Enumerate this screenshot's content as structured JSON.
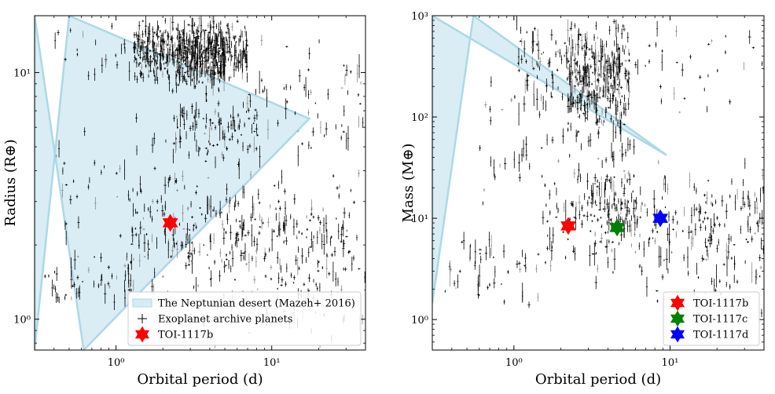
{
  "chart_data": [
    {
      "type": "scatter",
      "xlabel": "Orbital period (d)",
      "ylabel": "Radius (R⊕)",
      "xscale": "log",
      "yscale": "log",
      "xlim": [
        0.3,
        40
      ],
      "ylim": [
        0.75,
        17
      ],
      "x_ticks": [
        {
          "value": 1,
          "label": "10⁰"
        },
        {
          "value": 10,
          "label": "10¹"
        }
      ],
      "y_ticks": [
        {
          "value": 1,
          "label": "10⁰"
        },
        {
          "value": 10,
          "label": "10¹"
        }
      ],
      "desert_polygon": {
        "name": "The Neptunian desert (Mazeh+ 2016)",
        "color": "#add8e6",
        "period": [
          0.3,
          0.3,
          0.62,
          17.4,
          0.5
        ],
        "radius": [
          0.75,
          17,
          0.75,
          6.5,
          17
        ]
      },
      "archive_planets": {
        "name": "Exoplanet archive planets",
        "clusters": [
          {
            "xr": [
              1.3,
              7
            ],
            "yr": [
              9,
              17
            ],
            "n": 440
          },
          {
            "xr": [
              2.5,
              5
            ],
            "yr": [
              8,
              16
            ],
            "n": 160
          },
          {
            "xr": [
              1.2,
              40
            ],
            "yr": [
              1.2,
              4.2
            ],
            "n": 330
          },
          {
            "xr": [
              0.35,
              1.3
            ],
            "yr": [
              1.05,
              1.9
            ],
            "n": 55
          },
          {
            "xr": [
              2.3,
              8
            ],
            "yr": [
              4,
              9
            ],
            "n": 110
          },
          {
            "xr": [
              0.4,
              4
            ],
            "yr": [
              1.8,
              7
            ],
            "n": 45
          },
          {
            "xr": [
              8,
              40
            ],
            "yr": [
              4,
              14
            ],
            "n": 60
          },
          {
            "xr": [
              0.4,
              5
            ],
            "yr": [
              8,
              17
            ],
            "n": 45
          },
          {
            "xr": [
              3,
              40
            ],
            "yr": [
              0.76,
              1.5
            ],
            "n": 40
          }
        ]
      },
      "highlight": [
        {
          "name": "TOI-1117b",
          "period": 2.23,
          "value": 2.46,
          "color": "#ff0000"
        }
      ],
      "legend": {
        "placement": "lower right",
        "entries": [
          {
            "label": "The Neptunian desert (Mazeh+ 2016)",
            "kind": "patch",
            "color": "#add8e6"
          },
          {
            "label": "Exoplanet archive planets",
            "kind": "errorbar",
            "color": "#000000"
          },
          {
            "label": "TOI-1117b",
            "kind": "star",
            "color": "#ff0000"
          }
        ]
      }
    },
    {
      "type": "scatter",
      "xlabel": "Orbital period (d)",
      "ylabel": "Mass (M⊕)",
      "xscale": "log",
      "yscale": "log",
      "xlim": [
        0.3,
        40
      ],
      "ylim": [
        0.5,
        1000
      ],
      "x_ticks": [
        {
          "value": 1,
          "label": "10⁰"
        },
        {
          "value": 10,
          "label": "10¹"
        }
      ],
      "y_ticks": [
        {
          "value": 1,
          "label": "10⁰"
        },
        {
          "value": 10,
          "label": "10¹"
        },
        {
          "value": 100,
          "label": "10²"
        },
        {
          "value": 1000,
          "label": "10³"
        }
      ],
      "desert_polygon": {
        "name": "The Neptunian desert (Mazeh+ 2016)",
        "color": "#add8e6",
        "period": [
          0.3,
          0.3,
          9.5,
          0.55,
          0.3
        ],
        "mass": [
          1.45,
          1000,
          42,
          1000,
          1.45
        ]
      },
      "archive_planets": {
        "name": "Exoplanet archive planets",
        "clusters": [
          {
            "xr": [
              2.2,
              5.5
            ],
            "yr": [
              60,
              1000
            ],
            "n": 330
          },
          {
            "xr": [
              1.0,
              2.5
            ],
            "yr": [
              100,
              1000
            ],
            "n": 70
          },
          {
            "xr": [
              5,
              40
            ],
            "yr": [
              100,
              1000
            ],
            "n": 35
          },
          {
            "xr": [
              1.5,
              40
            ],
            "yr": [
              2,
              40
            ],
            "n": 260
          },
          {
            "xr": [
              0.35,
              1.5
            ],
            "yr": [
              1.2,
              8
            ],
            "n": 50
          },
          {
            "xr": [
              3,
              6
            ],
            "yr": [
              4,
              100
            ],
            "n": 90
          },
          {
            "xr": [
              0.6,
              3
            ],
            "yr": [
              10,
              300
            ],
            "n": 40
          },
          {
            "xr": [
              6,
              40
            ],
            "yr": [
              1,
              4
            ],
            "n": 20
          }
        ]
      },
      "highlight": [
        {
          "name": "TOI-1117b",
          "period": 2.23,
          "value": 8.4,
          "color": "#ff0000"
        },
        {
          "name": "TOI-1117c",
          "period": 4.58,
          "value": 8.1,
          "color": "#008000"
        },
        {
          "name": "TOI-1117d",
          "period": 8.67,
          "value": 10.0,
          "color": "#0000ff"
        }
      ],
      "legend": {
        "placement": "lower right",
        "entries": [
          {
            "label": "TOI-1117b",
            "kind": "star",
            "color": "#ff0000"
          },
          {
            "label": "TOI-1117c",
            "kind": "star",
            "color": "#008000"
          },
          {
            "label": "TOI-1117d",
            "kind": "star",
            "color": "#0000ff"
          }
        ]
      }
    }
  ]
}
